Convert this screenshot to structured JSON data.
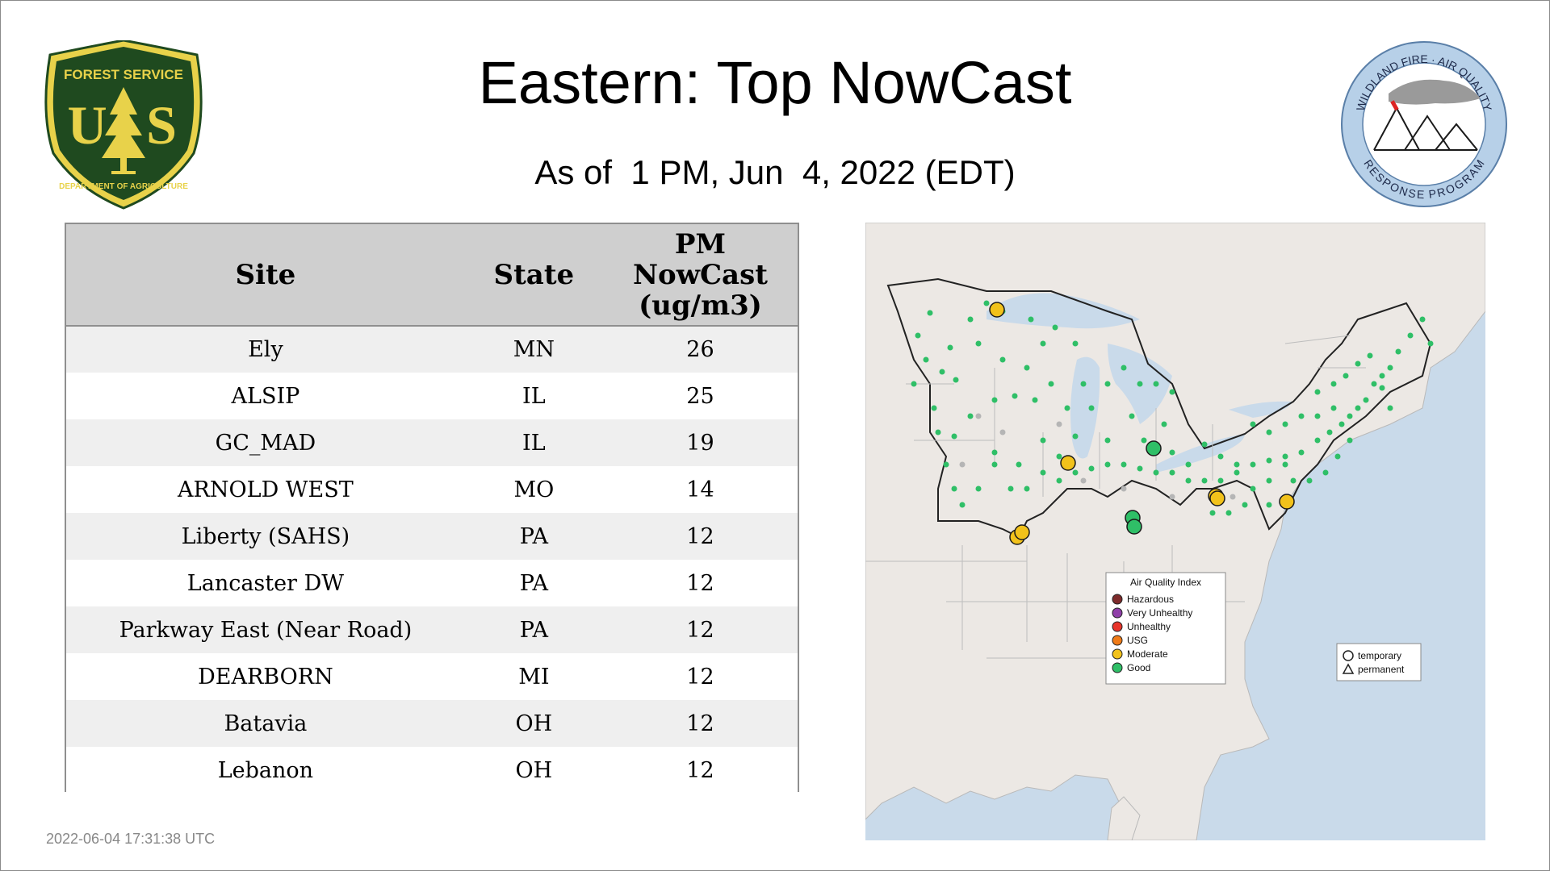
{
  "header": {
    "title": "Eastern: Top NowCast",
    "subtitle": "As of  1 PM, Jun  4, 2022 (EDT)"
  },
  "logos": {
    "forest_service": {
      "top_text": "FOREST SERVICE",
      "letters_left": "U",
      "letters_right": "S",
      "bottom_text": "DEPARTMENT OF AGRICULTURE",
      "colors": {
        "green": "#1f4a1f",
        "gold": "#e8d24a"
      }
    },
    "wildland_fire": {
      "top_text": "WILDLAND FIRE · AIR QUALITY",
      "bottom_text": "RESPONSE PROGRAM",
      "ring_color": "#b7d0e8"
    }
  },
  "table": {
    "headers": {
      "site": "Site",
      "state": "State",
      "pm": [
        "PM",
        "NowCast",
        "(ug/m3)"
      ]
    },
    "rows": [
      {
        "site": "Ely",
        "state": "MN",
        "pm": "26"
      },
      {
        "site": "ALSIP",
        "state": "IL",
        "pm": "25"
      },
      {
        "site": "GC_MAD",
        "state": "IL",
        "pm": "19"
      },
      {
        "site": "ARNOLD WEST",
        "state": "MO",
        "pm": "14"
      },
      {
        "site": "Liberty (SAHS)",
        "state": "PA",
        "pm": "12"
      },
      {
        "site": "Lancaster DW",
        "state": "PA",
        "pm": "12"
      },
      {
        "site": "Parkway East (Near Road)",
        "state": "PA",
        "pm": "12"
      },
      {
        "site": "DEARBORN",
        "state": "MI",
        "pm": "12"
      },
      {
        "site": "Batavia",
        "state": "OH",
        "pm": "12"
      },
      {
        "site": "Lebanon",
        "state": "OH",
        "pm": "12"
      }
    ]
  },
  "map": {
    "legend": {
      "title": "Air Quality Index",
      "categories": [
        {
          "label": "Hazardous",
          "color": "#7e2b2b"
        },
        {
          "label": "Very Unhealthy",
          "color": "#8f3fa8"
        },
        {
          "label": "Unhealthy",
          "color": "#e8342b"
        },
        {
          "label": "USG",
          "color": "#f07b17"
        },
        {
          "label": "Moderate",
          "color": "#f2c21b"
        },
        {
          "label": "Good",
          "color": "#2fbf67"
        }
      ],
      "shapes": [
        {
          "label": "temporary",
          "icon": "circle"
        },
        {
          "label": "permanent",
          "icon": "triangle"
        }
      ]
    },
    "colors": {
      "water": "#c9daea",
      "land": "#ece8e4",
      "good": "#2fbf67",
      "moderate": "#f2c21b",
      "inactive": "#b5b5b5"
    }
  },
  "footer": {
    "timestamp": "2022-06-04 17:31:38 UTC"
  }
}
